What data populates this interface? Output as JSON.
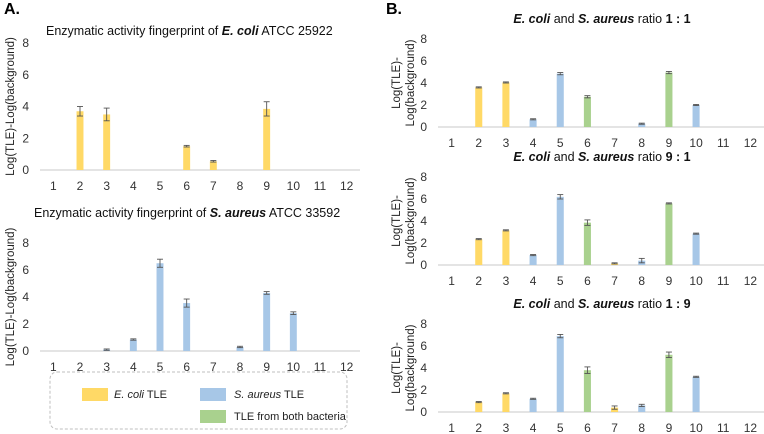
{
  "panels": {
    "a": "A.",
    "b": "B."
  },
  "colors": {
    "ecoli": "#FFD966",
    "saureus": "#A7C7E7",
    "both": "#A9D18E",
    "axis": "#C9C9C9",
    "err": "#555555"
  },
  "legend": {
    "items": [
      {
        "key": "ecoli",
        "italic": "E. coli",
        "rest": " TLE"
      },
      {
        "key": "saureus",
        "italic": "S. aureus",
        "rest": " TLE"
      },
      {
        "key": "both",
        "italic": "",
        "rest": "TLE from both bacteria"
      }
    ]
  },
  "chart_data": [
    {
      "id": "a1",
      "type": "bar",
      "title_parts": [
        [
          "Enzymatic activity fingerprint of ",
          ""
        ],
        [
          "E. coli",
          "it"
        ],
        [
          " ATCC 25922",
          ""
        ]
      ],
      "ylabel": "Log(TLE)-Log(background)",
      "categories": [
        "1",
        "2",
        "3",
        "4",
        "5",
        "6",
        "7",
        "8",
        "9",
        "10",
        "11",
        "12"
      ],
      "ylim": [
        0,
        8
      ],
      "yticks": [
        0,
        2,
        4,
        6,
        8
      ],
      "values": [
        0,
        3.7,
        3.5,
        0,
        0,
        1.5,
        0.55,
        0,
        3.85,
        0,
        0,
        0
      ],
      "errors": [
        0,
        0.3,
        0.4,
        0,
        0,
        0.05,
        0.05,
        0,
        0.45,
        0,
        0,
        0
      ],
      "colors": [
        "",
        "ecoli",
        "ecoli",
        "",
        "",
        "ecoli",
        "ecoli",
        "",
        "ecoli",
        "",
        "",
        ""
      ]
    },
    {
      "id": "a2",
      "type": "bar",
      "title_parts": [
        [
          "Enzymatic activity fingerprint of ",
          ""
        ],
        [
          "S. aureus",
          "it"
        ],
        [
          " ATCC 33592",
          ""
        ]
      ],
      "ylabel": "Log(TLE)-Log(background)",
      "categories": [
        "1",
        "2",
        "3",
        "4",
        "5",
        "6",
        "7",
        "8",
        "9",
        "10",
        "11",
        "12"
      ],
      "ylim": [
        0,
        8
      ],
      "yticks": [
        0,
        2,
        4,
        6,
        8
      ],
      "values": [
        0,
        0,
        0.1,
        0.85,
        6.5,
        3.55,
        0,
        0.3,
        4.3,
        2.8,
        0,
        0
      ],
      "errors": [
        0,
        0,
        0.05,
        0.05,
        0.3,
        0.3,
        0,
        0.05,
        0.1,
        0.1,
        0,
        0
      ],
      "colors": [
        "",
        "",
        "saureus",
        "saureus",
        "saureus",
        "saureus",
        "",
        "saureus",
        "saureus",
        "saureus",
        "",
        ""
      ]
    },
    {
      "id": "b1",
      "type": "bar",
      "title_parts": [
        [
          "E. coli",
          "it"
        ],
        [
          "  and ",
          ""
        ],
        [
          "S. aureus",
          "it"
        ],
        [
          "  ratio ",
          ""
        ],
        [
          "1 : 1",
          "b"
        ]
      ],
      "ylabel_lines": [
        "Log(TLE)-",
        "Log(background)"
      ],
      "categories": [
        "1",
        "2",
        "3",
        "4",
        "5",
        "6",
        "7",
        "8",
        "9",
        "10",
        "11",
        "12"
      ],
      "ylim": [
        0,
        8
      ],
      "yticks": [
        0,
        2,
        4,
        6,
        8
      ],
      "values": [
        0,
        3.6,
        4.05,
        0.7,
        4.85,
        2.75,
        0,
        0.3,
        4.95,
        2.0,
        0,
        0
      ],
      "errors": [
        0,
        0.05,
        0.05,
        0.05,
        0.1,
        0.1,
        0,
        0.05,
        0.1,
        0.05,
        0,
        0
      ],
      "colors": [
        "",
        "ecoli",
        "ecoli",
        "saureus",
        "saureus",
        "both",
        "",
        "saureus",
        "both",
        "saureus",
        "",
        ""
      ]
    },
    {
      "id": "b2",
      "type": "bar",
      "title_parts": [
        [
          "E. coli",
          "it"
        ],
        [
          "  and ",
          ""
        ],
        [
          "S. aureus",
          "it"
        ],
        [
          "  ratio ",
          ""
        ],
        [
          "9 : 1",
          "b"
        ]
      ],
      "ylabel_lines": [
        "Log(TLE)-",
        "Log(background)"
      ],
      "categories": [
        "1",
        "2",
        "3",
        "4",
        "5",
        "6",
        "7",
        "8",
        "9",
        "10",
        "11",
        "12"
      ],
      "ylim": [
        0,
        8
      ],
      "yticks": [
        0,
        2,
        4,
        6,
        8
      ],
      "values": [
        0,
        2.35,
        3.15,
        0.9,
        6.2,
        3.85,
        0.15,
        0.4,
        5.6,
        2.85,
        0,
        0
      ],
      "errors": [
        0,
        0.05,
        0.05,
        0.05,
        0.2,
        0.25,
        0.05,
        0.2,
        0.05,
        0.05,
        0,
        0
      ],
      "colors": [
        "",
        "ecoli",
        "ecoli",
        "saureus",
        "saureus",
        "both",
        "ecoli",
        "saureus",
        "both",
        "saureus",
        "",
        ""
      ]
    },
    {
      "id": "b3",
      "type": "bar",
      "title_parts": [
        [
          "E. coli",
          "it"
        ],
        [
          "  and ",
          ""
        ],
        [
          "S. aureus",
          "it"
        ],
        [
          "  ratio ",
          ""
        ],
        [
          "1 : 9",
          "b"
        ]
      ],
      "ylabel_lines": [
        "Log(TLE)-",
        "Log(background)"
      ],
      "categories": [
        "1",
        "2",
        "3",
        "4",
        "5",
        "6",
        "7",
        "8",
        "9",
        "10",
        "11",
        "12"
      ],
      "ylim": [
        0,
        8
      ],
      "yticks": [
        0,
        2,
        4,
        6,
        8
      ],
      "values": [
        0,
        0.9,
        1.7,
        1.2,
        6.9,
        3.8,
        0.4,
        0.6,
        5.2,
        3.2,
        0,
        0
      ],
      "errors": [
        0,
        0.05,
        0.05,
        0.05,
        0.15,
        0.3,
        0.15,
        0.1,
        0.25,
        0.05,
        0,
        0
      ],
      "colors": [
        "",
        "ecoli",
        "ecoli",
        "saureus",
        "saureus",
        "both",
        "ecoli",
        "saureus",
        "both",
        "saureus",
        "",
        ""
      ]
    }
  ]
}
